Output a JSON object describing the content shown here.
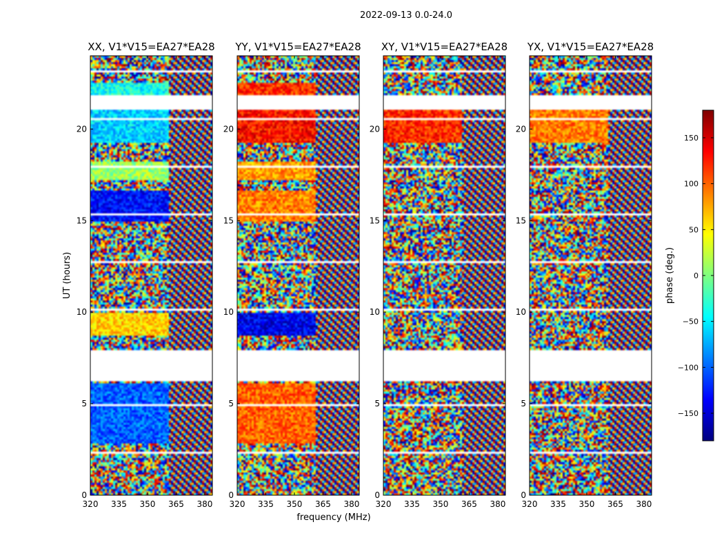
{
  "figure": {
    "suptitle": "2022-09-13 0.0-24.0",
    "colorbar": {
      "label": "phase (deg.)",
      "range": [
        -180,
        180
      ],
      "ticks": [
        "150",
        "100",
        "50",
        "0",
        "−50",
        "−100",
        "−150"
      ],
      "tick_values": [
        150,
        100,
        50,
        0,
        -50,
        -100,
        -150
      ],
      "colormap": "jet",
      "colors": [
        "#00007f",
        "#0000ff",
        "#007fff",
        "#00ffff",
        "#7fff7f",
        "#ffff00",
        "#ff7f00",
        "#ff0000",
        "#7f0000"
      ]
    }
  },
  "chart_data": [
    {
      "type": "heatmap",
      "title": "XX, V1*V15=EA27*EA28",
      "xlabel": "",
      "ylabel": "UT (hours)",
      "x_ticks": [
        "320",
        "335",
        "350",
        "365",
        "380"
      ],
      "x_tick_values": [
        320,
        335,
        350,
        365,
        380
      ],
      "y_ticks": [
        "0",
        "5",
        "10",
        "15",
        "20"
      ],
      "y_tick_values": [
        0,
        5,
        10,
        15,
        20
      ],
      "xlim": [
        320,
        384
      ],
      "ylim": [
        0,
        24
      ],
      "data_gaps_hours": [
        [
          6.2,
          7.9
        ],
        [
          21.1,
          21.9
        ]
      ],
      "coherent_phase_deg": [
        [
          2.8,
          6.1,
          -100
        ],
        [
          8.7,
          10.0,
          60
        ],
        [
          15.0,
          16.6,
          -130
        ],
        [
          17.2,
          18.2,
          10
        ],
        [
          19.3,
          21.0,
          -60
        ],
        [
          21.9,
          22.5,
          -40
        ]
      ]
    },
    {
      "type": "heatmap",
      "title": "YY, V1*V15=EA27*EA28",
      "xlabel": "frequency (MHz)",
      "ylabel": "",
      "x_ticks": [
        "320",
        "335",
        "350",
        "365",
        "380"
      ],
      "x_tick_values": [
        320,
        335,
        350,
        365,
        380
      ],
      "y_ticks": [
        "0",
        "5",
        "10",
        "15",
        "20"
      ],
      "y_tick_values": [
        0,
        5,
        10,
        15,
        20
      ],
      "xlim": [
        320,
        384
      ],
      "ylim": [
        0,
        24
      ],
      "data_gaps_hours": [
        [
          6.2,
          7.9
        ],
        [
          21.1,
          21.9
        ]
      ],
      "coherent_phase_deg": [
        [
          2.8,
          6.1,
          100
        ],
        [
          8.7,
          10.0,
          -140
        ],
        [
          15.0,
          16.6,
          90
        ],
        [
          17.2,
          18.2,
          80
        ],
        [
          19.3,
          21.0,
          130
        ],
        [
          21.9,
          22.5,
          120
        ]
      ]
    },
    {
      "type": "heatmap",
      "title": "XY, V1*V15=EA27*EA28",
      "xlabel": "",
      "ylabel": "",
      "x_ticks": [
        "320",
        "335",
        "350",
        "365",
        "380"
      ],
      "x_tick_values": [
        320,
        335,
        350,
        365,
        380
      ],
      "y_ticks": [
        "0",
        "5",
        "10",
        "15",
        "20"
      ],
      "y_tick_values": [
        0,
        5,
        10,
        15,
        20
      ],
      "xlim": [
        320,
        384
      ],
      "ylim": [
        0,
        24
      ],
      "data_gaps_hours": [
        [
          6.2,
          7.9
        ],
        [
          21.1,
          21.9
        ]
      ],
      "coherent_phase_deg": [
        [
          19.3,
          21.0,
          120
        ]
      ]
    },
    {
      "type": "heatmap",
      "title": "YX, V1*V15=EA27*EA28",
      "xlabel": "",
      "ylabel": "",
      "x_ticks": [
        "320",
        "335",
        "350",
        "365",
        "380"
      ],
      "x_tick_values": [
        320,
        335,
        350,
        365,
        380
      ],
      "y_ticks": [
        "0",
        "5",
        "10",
        "15",
        "20"
      ],
      "y_tick_values": [
        0,
        5,
        10,
        15,
        20
      ],
      "xlim": [
        320,
        384
      ],
      "ylim": [
        0,
        24
      ],
      "data_gaps_hours": [
        [
          6.2,
          7.9
        ],
        [
          21.1,
          21.9
        ]
      ],
      "coherent_phase_deg": [
        [
          19.3,
          21.0,
          90
        ]
      ]
    }
  ]
}
